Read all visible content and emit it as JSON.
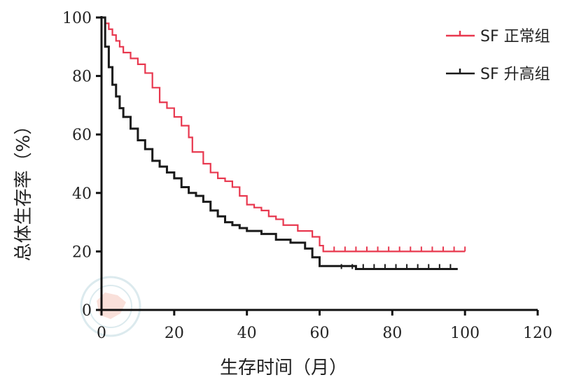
{
  "chart_data": {
    "type": "line",
    "title": "",
    "xlabel": "生存时间（月）",
    "ylabel": "总体生存率（%）",
    "xlim": [
      0,
      120
    ],
    "ylim": [
      0,
      100
    ],
    "xticks": [
      "0",
      "20",
      "40",
      "60",
      "80",
      "100",
      "120"
    ],
    "yticks": [
      "0",
      "20",
      "40",
      "60",
      "80",
      "100"
    ],
    "grid": false,
    "legend_position": "top-right",
    "series": [
      {
        "name": "SF 正常组",
        "color": "#e8384f",
        "x": [
          0,
          1,
          2,
          3,
          4,
          5,
          6,
          8,
          10,
          12,
          14,
          16,
          18,
          20,
          22,
          24,
          25,
          27,
          28,
          30,
          32,
          34,
          36,
          38,
          40,
          42,
          44,
          46,
          48,
          50,
          54,
          58,
          60,
          61,
          62,
          70,
          80,
          90,
          100
        ],
        "y": [
          100,
          98,
          96,
          94,
          92,
          90,
          88,
          86,
          84,
          81,
          76,
          71,
          69,
          66,
          63,
          59,
          54,
          54,
          50,
          47,
          45,
          44,
          42,
          39,
          36,
          35,
          34,
          32,
          31,
          29,
          27,
          25,
          22,
          20,
          20,
          20,
          20,
          20,
          20
        ]
      },
      {
        "name": "SF 升高组",
        "color": "#1a1a1a",
        "x": [
          0,
          1,
          2,
          3,
          4,
          5,
          6,
          8,
          10,
          12,
          14,
          16,
          18,
          20,
          22,
          24,
          26,
          28,
          30,
          32,
          34,
          36,
          38,
          40,
          44,
          48,
          52,
          56,
          58,
          60,
          64,
          70,
          80,
          90,
          98
        ],
        "y": [
          100,
          90,
          83,
          77,
          73,
          69,
          66,
          62,
          58,
          55,
          51,
          49,
          47,
          45,
          42,
          40,
          39,
          37,
          34,
          32,
          30,
          29,
          28,
          27,
          26,
          24,
          23,
          21,
          18,
          15,
          15,
          14,
          14,
          14,
          14
        ]
      }
    ]
  }
}
